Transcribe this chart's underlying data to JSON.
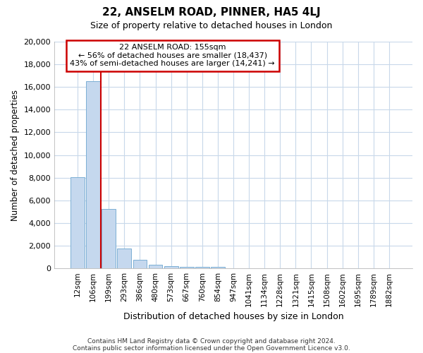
{
  "title": "22, ANSELM ROAD, PINNER, HA5 4LJ",
  "subtitle": "Size of property relative to detached houses in London",
  "xlabel": "Distribution of detached houses by size in London",
  "ylabel": "Number of detached properties",
  "bar_color": "#c5d8ee",
  "bar_edge_color": "#7bafd4",
  "grid_color": "#c8d8ea",
  "annotation_text": "22 ANSELM ROAD: 155sqm\n← 56% of detached houses are smaller (18,437)\n43% of semi-detached houses are larger (14,241) →",
  "annotation_box_color": "#ffffff",
  "annotation_box_edge": "#cc0000",
  "redline_x": 1.5,
  "redline_color": "#cc0000",
  "categories": [
    "12sqm",
    "106sqm",
    "199sqm",
    "293sqm",
    "386sqm",
    "480sqm",
    "573sqm",
    "667sqm",
    "760sqm",
    "854sqm",
    "947sqm",
    "1041sqm",
    "1134sqm",
    "1228sqm",
    "1321sqm",
    "1415sqm",
    "1508sqm",
    "1602sqm",
    "1695sqm",
    "1789sqm",
    "1882sqm"
  ],
  "values": [
    8050,
    16500,
    5220,
    1760,
    750,
    300,
    200,
    150,
    130,
    110,
    0,
    0,
    0,
    0,
    0,
    0,
    0,
    0,
    0,
    0,
    0
  ],
  "ylim": [
    0,
    20000
  ],
  "yticks": [
    0,
    2000,
    4000,
    6000,
    8000,
    10000,
    12000,
    14000,
    16000,
    18000,
    20000
  ],
  "footer1": "Contains HM Land Registry data © Crown copyright and database right 2024.",
  "footer2": "Contains public sector information licensed under the Open Government Licence v3.0.",
  "bg_color": "#ffffff",
  "fig_bg_color": "#ffffff"
}
